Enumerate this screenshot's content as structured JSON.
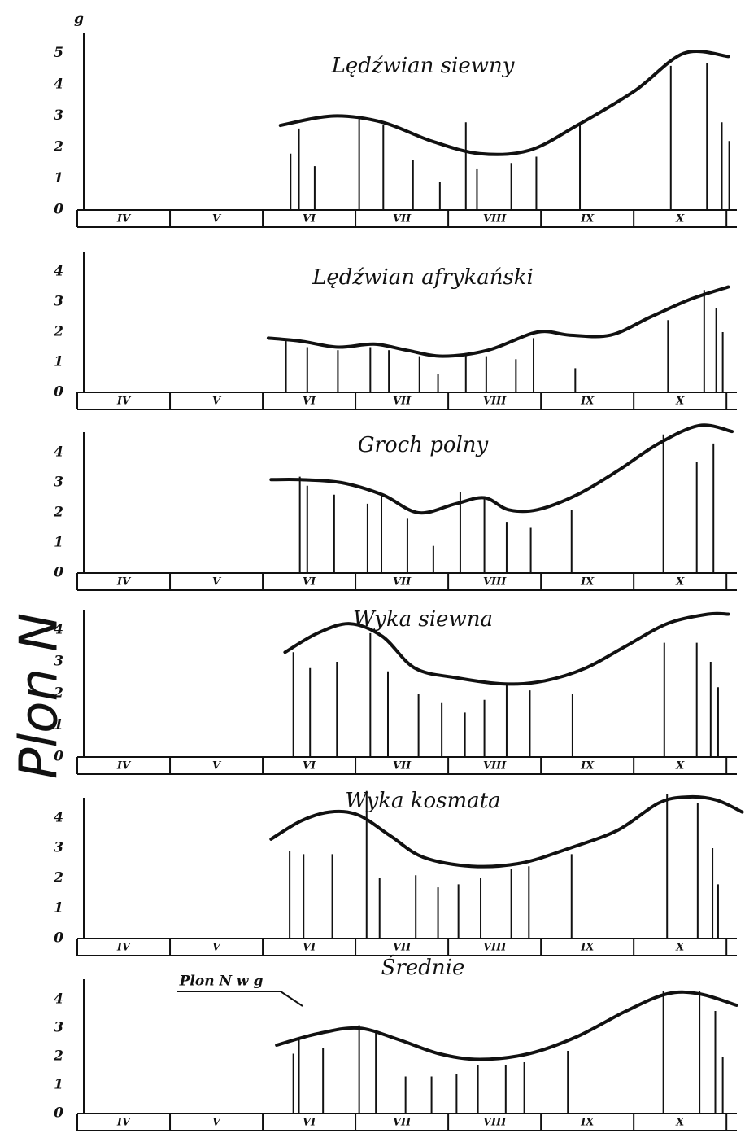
{
  "ylabel": "Plon N",
  "chart_data": [
    {
      "type": "combo",
      "title": "Lędźwian siewny",
      "ylabel": "g",
      "categories": [
        "IV",
        "V",
        "VI",
        "VII",
        "VIII",
        "IX",
        "X"
      ],
      "xlim": [
        4,
        11.2
      ],
      "ylim": [
        0,
        5
      ],
      "yticks": [
        0,
        1,
        2,
        3,
        4,
        5
      ],
      "x": [
        6.3,
        6.39,
        6.56,
        7.04,
        7.3,
        7.62,
        7.91,
        8.19,
        8.31,
        8.68,
        8.95,
        9.42,
        10.4,
        10.79,
        10.95,
        11.03
      ],
      "values": [
        1.8,
        2.6,
        1.4,
        2.9,
        2.7,
        1.6,
        0.9,
        2.8,
        1.3,
        1.5,
        1.7,
        2.7,
        4.6,
        4.7,
        2.8,
        2.2
      ],
      "line_x": [
        6.19,
        6.76,
        7.29,
        7.82,
        8.34,
        8.87,
        9.39,
        10.01,
        10.54,
        11.02
      ],
      "line_values": [
        2.7,
        3.0,
        2.8,
        2.2,
        1.8,
        1.9,
        2.7,
        3.8,
        5.0,
        4.9
      ]
    },
    {
      "type": "combo",
      "title": "Lędźwian afrykański",
      "categories": [
        "IV",
        "V",
        "VI",
        "VII",
        "VIII",
        "IX",
        "X"
      ],
      "xlim": [
        4,
        11.2
      ],
      "ylim": [
        0,
        4
      ],
      "yticks": [
        0,
        1,
        2,
        3,
        4
      ],
      "x": [
        6.25,
        6.48,
        6.81,
        7.16,
        7.36,
        7.69,
        7.89,
        8.19,
        8.41,
        8.73,
        8.92,
        9.37,
        10.37,
        10.76,
        10.89,
        10.96
      ],
      "values": [
        1.7,
        1.5,
        1.4,
        1.5,
        1.4,
        1.2,
        0.6,
        1.3,
        1.2,
        1.1,
        1.8,
        0.8,
        2.4,
        3.4,
        2.8,
        2.0
      ],
      "line_x": [
        6.06,
        6.41,
        6.81,
        7.2,
        7.55,
        7.94,
        8.43,
        8.96,
        9.31,
        9.75,
        10.18,
        10.62,
        11.02
      ],
      "line_values": [
        1.8,
        1.7,
        1.5,
        1.6,
        1.4,
        1.2,
        1.4,
        2.0,
        1.9,
        1.9,
        2.5,
        3.1,
        3.5
      ]
    },
    {
      "type": "combo",
      "title": "Groch polny",
      "categories": [
        "IV",
        "V",
        "VI",
        "VII",
        "VIII",
        "IX",
        "X"
      ],
      "xlim": [
        4,
        11.2
      ],
      "ylim": [
        0,
        4
      ],
      "yticks": [
        0,
        1,
        2,
        3,
        4
      ],
      "x": [
        6.4,
        6.48,
        6.77,
        7.13,
        7.28,
        7.56,
        7.84,
        8.13,
        8.39,
        8.63,
        8.89,
        9.33,
        10.32,
        10.68,
        10.86
      ],
      "values": [
        3.2,
        2.9,
        2.6,
        2.3,
        2.6,
        1.8,
        0.9,
        2.7,
        2.5,
        1.7,
        1.5,
        2.1,
        4.6,
        3.7,
        4.3
      ],
      "line_x": [
        6.09,
        6.41,
        6.85,
        7.29,
        7.68,
        8.08,
        8.39,
        8.65,
        8.96,
        9.39,
        9.83,
        10.27,
        10.71,
        11.06
      ],
      "line_values": [
        3.1,
        3.1,
        3.0,
        2.6,
        2.0,
        2.3,
        2.5,
        2.1,
        2.1,
        2.6,
        3.4,
        4.3,
        4.9,
        4.7
      ]
    },
    {
      "type": "combo",
      "title": "Wyka siewna",
      "categories": [
        "IV",
        "V",
        "VI",
        "VII",
        "VIII",
        "IX",
        "X"
      ],
      "xlim": [
        4,
        11.2
      ],
      "ylim": [
        0,
        4
      ],
      "yticks": [
        0,
        1,
        2,
        3,
        4
      ],
      "x": [
        6.33,
        6.51,
        6.8,
        7.16,
        7.35,
        7.68,
        7.93,
        8.18,
        8.39,
        8.63,
        8.88,
        9.34,
        10.33,
        10.68,
        10.83,
        10.91
      ],
      "values": [
        3.3,
        2.8,
        3.0,
        3.9,
        2.7,
        2.0,
        1.7,
        1.4,
        1.8,
        2.3,
        2.1,
        2.0,
        3.6,
        3.6,
        3.0,
        2.2
      ],
      "line_x": [
        6.24,
        6.59,
        6.94,
        7.29,
        7.64,
        8.08,
        8.61,
        9.04,
        9.48,
        9.92,
        10.36,
        10.8,
        11.02
      ],
      "line_values": [
        3.3,
        3.9,
        4.2,
        3.8,
        2.8,
        2.5,
        2.3,
        2.4,
        2.8,
        3.5,
        4.2,
        4.5,
        4.5
      ]
    },
    {
      "type": "combo",
      "title": "Wyka kosmata",
      "categories": [
        "IV",
        "V",
        "VI",
        "VII",
        "VIII",
        "IX",
        "X"
      ],
      "xlim": [
        4,
        11.2
      ],
      "ylim": [
        0,
        4
      ],
      "yticks": [
        0,
        1,
        2,
        3,
        4
      ],
      "x": [
        6.29,
        6.44,
        6.75,
        7.12,
        7.26,
        7.65,
        7.89,
        8.11,
        8.35,
        8.68,
        8.87,
        9.33,
        10.36,
        10.69,
        10.85,
        10.91
      ],
      "values": [
        2.9,
        2.8,
        2.8,
        4.9,
        2.0,
        2.1,
        1.7,
        1.8,
        2.0,
        2.3,
        2.4,
        2.8,
        4.8,
        4.5,
        3.0,
        1.8
      ],
      "line_x": [
        6.09,
        6.41,
        6.72,
        7.03,
        7.38,
        7.73,
        8.25,
        8.78,
        9.31,
        9.83,
        10.27,
        10.58,
        10.89,
        11.17
      ],
      "line_values": [
        3.3,
        3.9,
        4.2,
        4.1,
        3.4,
        2.7,
        2.4,
        2.5,
        3.0,
        3.6,
        4.5,
        4.7,
        4.6,
        4.2
      ]
    },
    {
      "type": "combo",
      "title": "Średnie",
      "annotation": "Plon N w g",
      "categories": [
        "IV",
        "V",
        "VI",
        "VII",
        "VIII",
        "IX",
        "X"
      ],
      "xlim": [
        4,
        11.2
      ],
      "ylim": [
        0,
        4
      ],
      "yticks": [
        0,
        1,
        2,
        3,
        4
      ],
      "x": [
        6.33,
        6.39,
        6.65,
        7.04,
        7.22,
        7.54,
        7.82,
        8.09,
        8.32,
        8.62,
        8.82,
        9.29,
        10.32,
        10.71,
        10.88,
        10.96
      ],
      "values": [
        2.1,
        2.6,
        2.3,
        3.1,
        2.9,
        1.3,
        1.3,
        1.4,
        1.7,
        1.7,
        1.8,
        2.2,
        4.3,
        4.3,
        3.6,
        2.0
      ],
      "line_x": [
        6.15,
        6.59,
        7.03,
        7.46,
        7.9,
        8.34,
        8.87,
        9.39,
        9.92,
        10.36,
        10.71,
        11.11
      ],
      "line_values": [
        2.4,
        2.8,
        3.0,
        2.6,
        2.1,
        1.9,
        2.1,
        2.7,
        3.6,
        4.2,
        4.2,
        3.8
      ]
    }
  ]
}
